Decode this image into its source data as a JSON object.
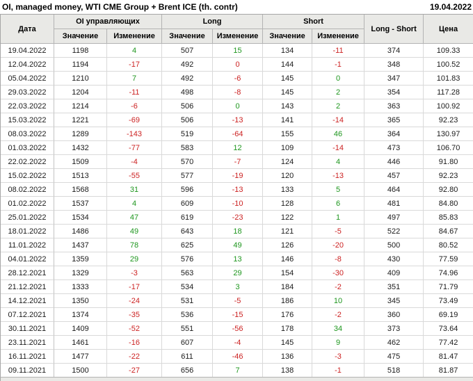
{
  "title": "OI, managed money, WTI CME Group + Brent ICE (th. contr)",
  "report_date": "19.04.2022",
  "colors": {
    "positive": "#1e961e",
    "negative": "#cc2222",
    "header_bg": "#e9e9e6",
    "grid_line": "#d9d9d9",
    "header_line": "#b3b3b3"
  },
  "table": {
    "header": {
      "date": "Дата",
      "group_oi": "OI управляющих",
      "group_long": "Long",
      "group_short": "Short",
      "long_short": "Long - Short",
      "price": "Цена",
      "sub_value": "Значение",
      "sub_change": "Изменение"
    },
    "rows": [
      {
        "date": "19.04.2022",
        "oi": "1198",
        "oi_chg": "4",
        "oi_dir": "pos",
        "long": "507",
        "long_chg": "15",
        "long_dir": "pos",
        "short": "134",
        "short_chg": "-11",
        "short_dir": "neg",
        "ls": "374",
        "price": "109.33"
      },
      {
        "date": "12.04.2022",
        "oi": "1194",
        "oi_chg": "-17",
        "oi_dir": "neg",
        "long": "492",
        "long_chg": "0",
        "long_dir": "neg",
        "short": "144",
        "short_chg": "-1",
        "short_dir": "neg",
        "ls": "348",
        "price": "100.52"
      },
      {
        "date": "05.04.2022",
        "oi": "1210",
        "oi_chg": "7",
        "oi_dir": "pos",
        "long": "492",
        "long_chg": "-6",
        "long_dir": "neg",
        "short": "145",
        "short_chg": "0",
        "short_dir": "pos",
        "ls": "347",
        "price": "101.83"
      },
      {
        "date": "29.03.2022",
        "oi": "1204",
        "oi_chg": "-11",
        "oi_dir": "neg",
        "long": "498",
        "long_chg": "-8",
        "long_dir": "neg",
        "short": "145",
        "short_chg": "2",
        "short_dir": "pos",
        "ls": "354",
        "price": "117.28"
      },
      {
        "date": "22.03.2022",
        "oi": "1214",
        "oi_chg": "-6",
        "oi_dir": "neg",
        "long": "506",
        "long_chg": "0",
        "long_dir": "pos",
        "short": "143",
        "short_chg": "2",
        "short_dir": "pos",
        "ls": "363",
        "price": "100.92"
      },
      {
        "date": "15.03.2022",
        "oi": "1221",
        "oi_chg": "-69",
        "oi_dir": "neg",
        "long": "506",
        "long_chg": "-13",
        "long_dir": "neg",
        "short": "141",
        "short_chg": "-14",
        "short_dir": "neg",
        "ls": "365",
        "price": "92.23"
      },
      {
        "date": "08.03.2022",
        "oi": "1289",
        "oi_chg": "-143",
        "oi_dir": "neg",
        "long": "519",
        "long_chg": "-64",
        "long_dir": "neg",
        "short": "155",
        "short_chg": "46",
        "short_dir": "pos",
        "ls": "364",
        "price": "130.97"
      },
      {
        "date": "01.03.2022",
        "oi": "1432",
        "oi_chg": "-77",
        "oi_dir": "neg",
        "long": "583",
        "long_chg": "12",
        "long_dir": "pos",
        "short": "109",
        "short_chg": "-14",
        "short_dir": "neg",
        "ls": "473",
        "price": "106.70"
      },
      {
        "date": "22.02.2022",
        "oi": "1509",
        "oi_chg": "-4",
        "oi_dir": "neg",
        "long": "570",
        "long_chg": "-7",
        "long_dir": "neg",
        "short": "124",
        "short_chg": "4",
        "short_dir": "pos",
        "ls": "446",
        "price": "91.80"
      },
      {
        "date": "15.02.2022",
        "oi": "1513",
        "oi_chg": "-55",
        "oi_dir": "neg",
        "long": "577",
        "long_chg": "-19",
        "long_dir": "neg",
        "short": "120",
        "short_chg": "-13",
        "short_dir": "neg",
        "ls": "457",
        "price": "92.23"
      },
      {
        "date": "08.02.2022",
        "oi": "1568",
        "oi_chg": "31",
        "oi_dir": "pos",
        "long": "596",
        "long_chg": "-13",
        "long_dir": "neg",
        "short": "133",
        "short_chg": "5",
        "short_dir": "pos",
        "ls": "464",
        "price": "92.80"
      },
      {
        "date": "01.02.2022",
        "oi": "1537",
        "oi_chg": "4",
        "oi_dir": "pos",
        "long": "609",
        "long_chg": "-10",
        "long_dir": "neg",
        "short": "128",
        "short_chg": "6",
        "short_dir": "pos",
        "ls": "481",
        "price": "84.80"
      },
      {
        "date": "25.01.2022",
        "oi": "1534",
        "oi_chg": "47",
        "oi_dir": "pos",
        "long": "619",
        "long_chg": "-23",
        "long_dir": "neg",
        "short": "122",
        "short_chg": "1",
        "short_dir": "pos",
        "ls": "497",
        "price": "85.83"
      },
      {
        "date": "18.01.2022",
        "oi": "1486",
        "oi_chg": "49",
        "oi_dir": "pos",
        "long": "643",
        "long_chg": "18",
        "long_dir": "pos",
        "short": "121",
        "short_chg": "-5",
        "short_dir": "neg",
        "ls": "522",
        "price": "84.67"
      },
      {
        "date": "11.01.2022",
        "oi": "1437",
        "oi_chg": "78",
        "oi_dir": "pos",
        "long": "625",
        "long_chg": "49",
        "long_dir": "pos",
        "short": "126",
        "short_chg": "-20",
        "short_dir": "neg",
        "ls": "500",
        "price": "80.52"
      },
      {
        "date": "04.01.2022",
        "oi": "1359",
        "oi_chg": "29",
        "oi_dir": "pos",
        "long": "576",
        "long_chg": "13",
        "long_dir": "pos",
        "short": "146",
        "short_chg": "-8",
        "short_dir": "neg",
        "ls": "430",
        "price": "77.59"
      },
      {
        "date": "28.12.2021",
        "oi": "1329",
        "oi_chg": "-3",
        "oi_dir": "neg",
        "long": "563",
        "long_chg": "29",
        "long_dir": "pos",
        "short": "154",
        "short_chg": "-30",
        "short_dir": "neg",
        "ls": "409",
        "price": "74.96"
      },
      {
        "date": "21.12.2021",
        "oi": "1333",
        "oi_chg": "-17",
        "oi_dir": "neg",
        "long": "534",
        "long_chg": "3",
        "long_dir": "pos",
        "short": "184",
        "short_chg": "-2",
        "short_dir": "neg",
        "ls": "351",
        "price": "71.79"
      },
      {
        "date": "14.12.2021",
        "oi": "1350",
        "oi_chg": "-24",
        "oi_dir": "neg",
        "long": "531",
        "long_chg": "-5",
        "long_dir": "neg",
        "short": "186",
        "short_chg": "10",
        "short_dir": "pos",
        "ls": "345",
        "price": "73.49"
      },
      {
        "date": "07.12.2021",
        "oi": "1374",
        "oi_chg": "-35",
        "oi_dir": "neg",
        "long": "536",
        "long_chg": "-15",
        "long_dir": "neg",
        "short": "176",
        "short_chg": "-2",
        "short_dir": "neg",
        "ls": "360",
        "price": "69.19"
      },
      {
        "date": "30.11.2021",
        "oi": "1409",
        "oi_chg": "-52",
        "oi_dir": "neg",
        "long": "551",
        "long_chg": "-56",
        "long_dir": "neg",
        "short": "178",
        "short_chg": "34",
        "short_dir": "pos",
        "ls": "373",
        "price": "73.64"
      },
      {
        "date": "23.11.2021",
        "oi": "1461",
        "oi_chg": "-16",
        "oi_dir": "neg",
        "long": "607",
        "long_chg": "-4",
        "long_dir": "neg",
        "short": "145",
        "short_chg": "9",
        "short_dir": "pos",
        "ls": "462",
        "price": "77.42"
      },
      {
        "date": "16.11.2021",
        "oi": "1477",
        "oi_chg": "-22",
        "oi_dir": "neg",
        "long": "611",
        "long_chg": "-46",
        "long_dir": "neg",
        "short": "136",
        "short_chg": "-3",
        "short_dir": "neg",
        "ls": "475",
        "price": "81.47"
      },
      {
        "date": "09.11.2021",
        "oi": "1500",
        "oi_chg": "-27",
        "oi_dir": "neg",
        "long": "656",
        "long_chg": "7",
        "long_dir": "pos",
        "short": "138",
        "short_chg": "-1",
        "short_dir": "neg",
        "ls": "518",
        "price": "81.87"
      }
    ]
  }
}
